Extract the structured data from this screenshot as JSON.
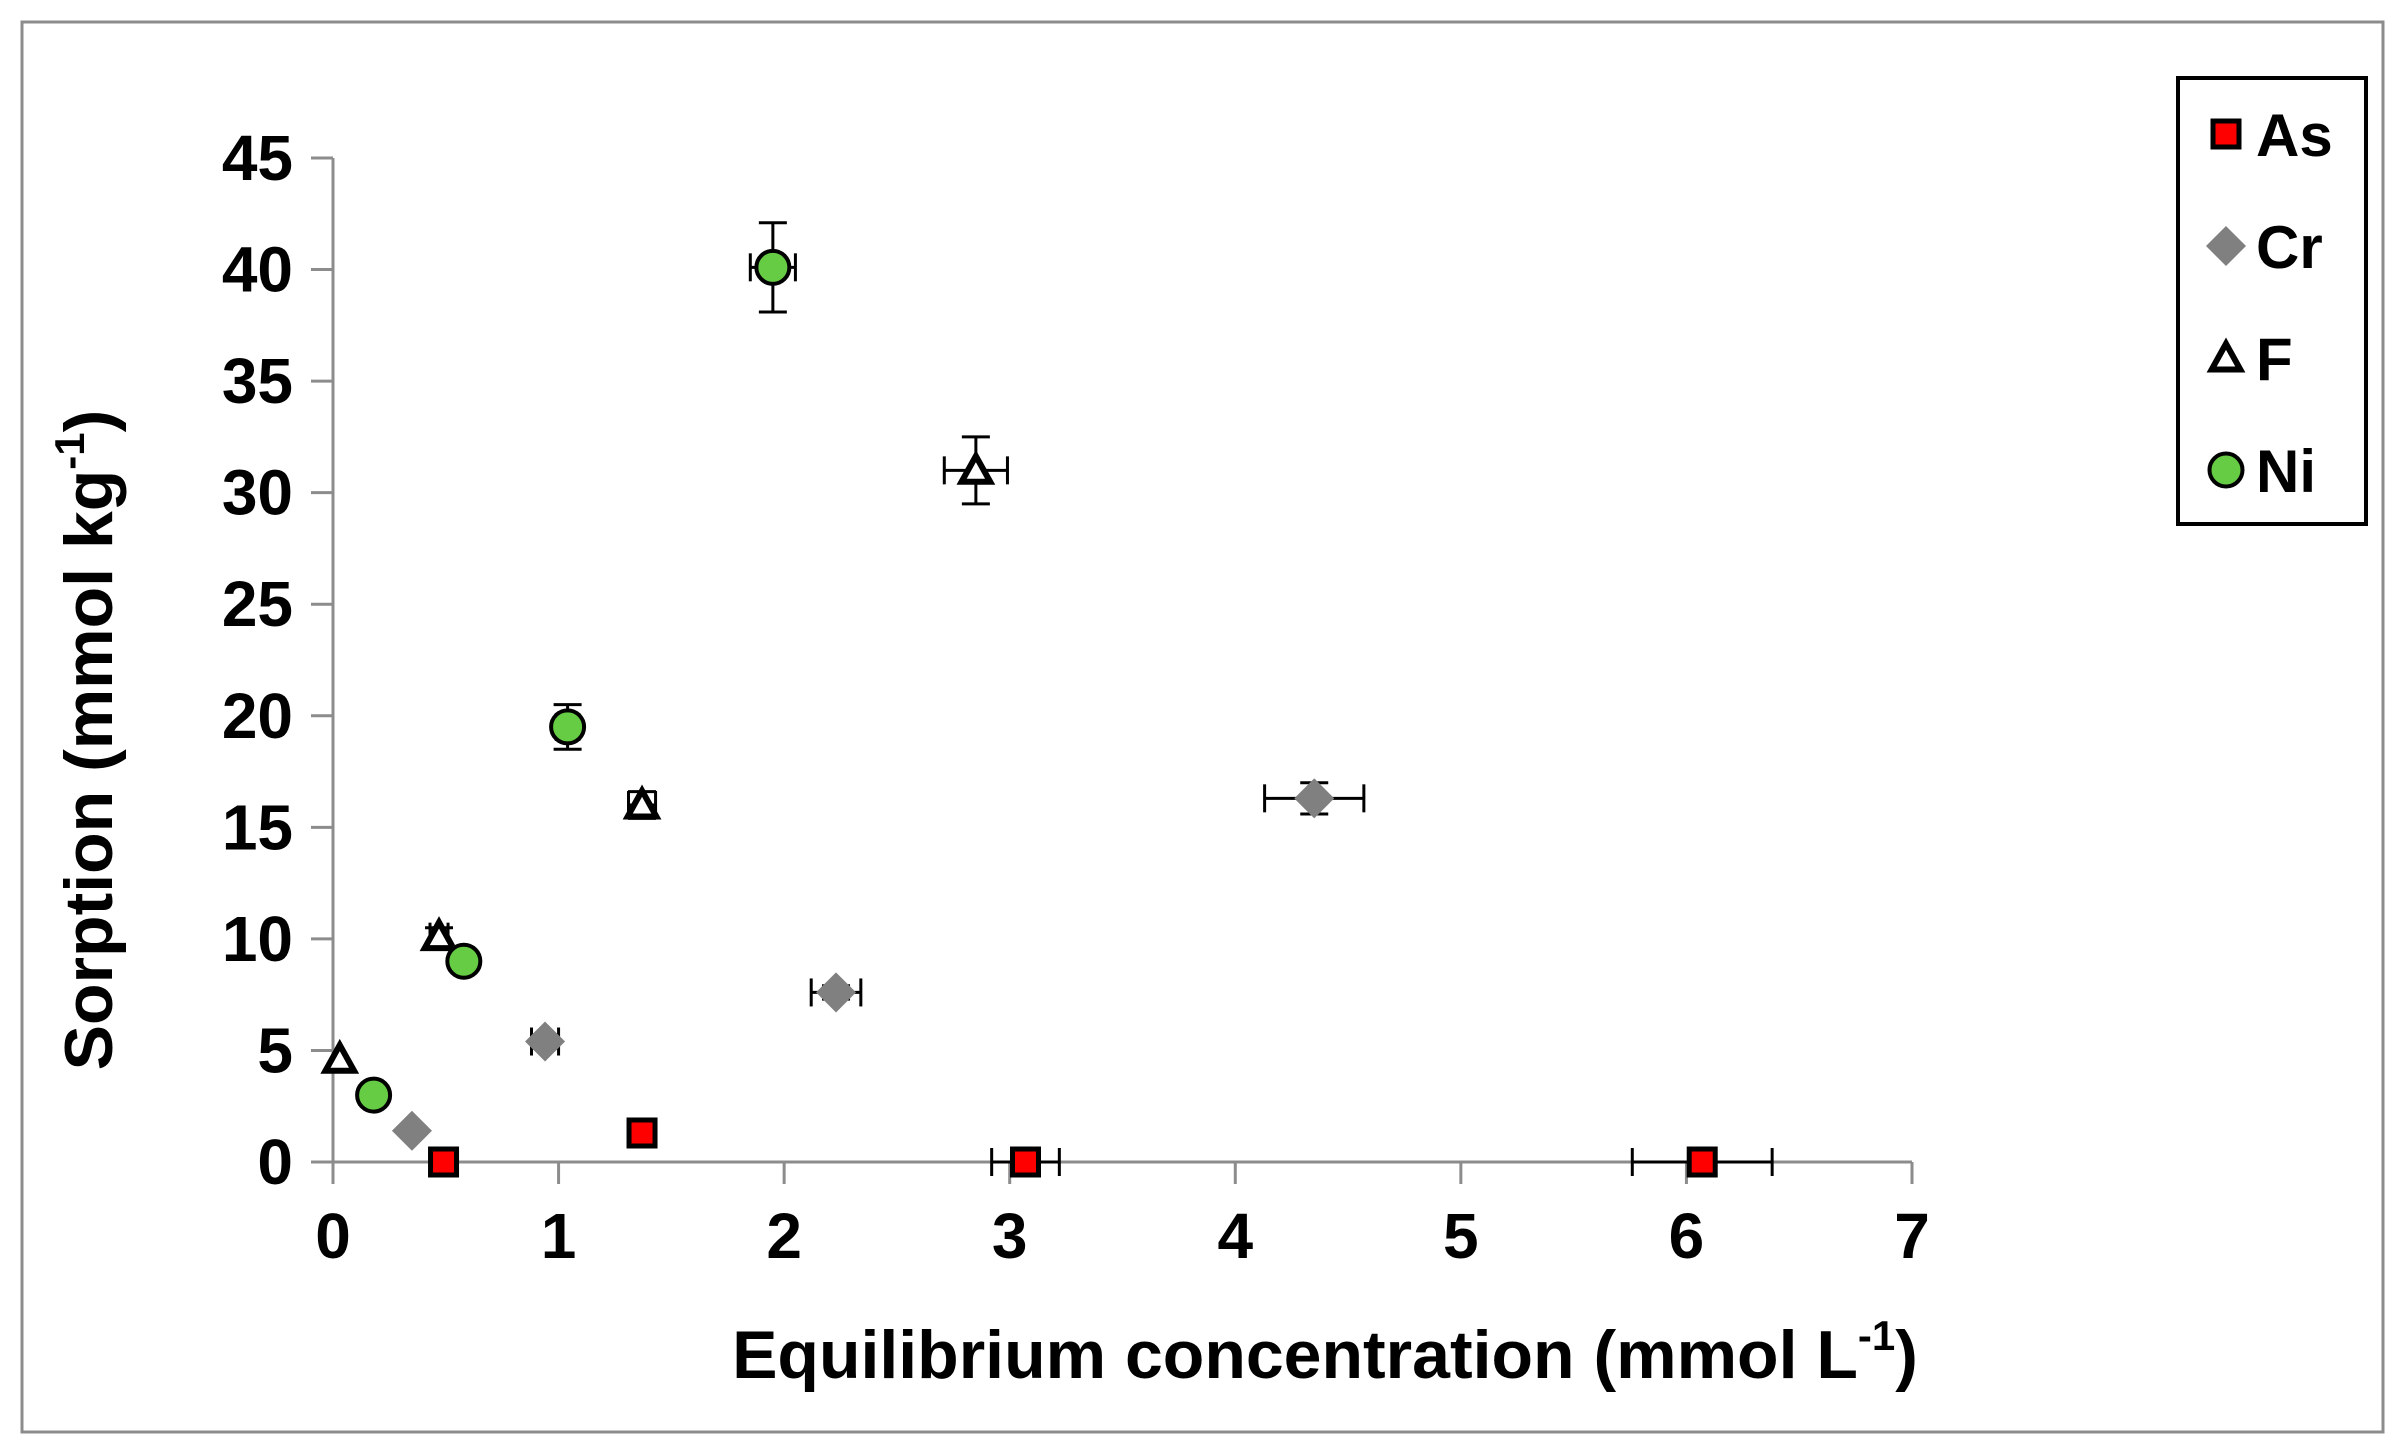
{
  "chart_data": {
    "type": "scatter",
    "xlabel": "Equilibrium concentration (mmol L",
    "xlabel_sup": "-1",
    "xlabel_end": ")",
    "ylabel": "Sorption (mmol kg",
    "ylabel_sup": "-1",
    "ylabel_end": ")",
    "xlim": [
      0,
      7
    ],
    "ylim": [
      0,
      45
    ],
    "x_ticks": [
      0,
      1,
      2,
      3,
      4,
      5,
      6,
      7
    ],
    "y_ticks": [
      0,
      5,
      10,
      15,
      20,
      25,
      30,
      35,
      40,
      45
    ],
    "grid": false,
    "legend_position": "top-right",
    "series": [
      {
        "name": "As",
        "marker": "square",
        "color": "#ff0000",
        "stroke": "#000000",
        "points": [
          {
            "x": 0.49,
            "y": 0.0,
            "xerr": 0.0,
            "yerr": 0.0
          },
          {
            "x": 1.37,
            "y": 1.3,
            "xerr": 0.05,
            "yerr": 0.3
          },
          {
            "x": 3.07,
            "y": 0.0,
            "xerr": 0.15,
            "yerr": 0.0
          },
          {
            "x": 6.07,
            "y": 0.0,
            "xerr": 0.31,
            "yerr": 0.0
          }
        ]
      },
      {
        "name": "Cr",
        "marker": "diamond",
        "color": "#808080",
        "stroke": "#808080",
        "points": [
          {
            "x": 0.35,
            "y": 1.4,
            "xerr": 0.0,
            "yerr": 0.0
          },
          {
            "x": 0.94,
            "y": 5.4,
            "xerr": 0.06,
            "yerr": 0.3
          },
          {
            "x": 2.23,
            "y": 7.6,
            "xerr": 0.11,
            "yerr": 0.3
          },
          {
            "x": 4.35,
            "y": 16.3,
            "xerr": 0.22,
            "yerr": 0.7
          }
        ]
      },
      {
        "name": "F",
        "marker": "triangle",
        "color": "#ffffff",
        "stroke": "#000000",
        "points": [
          {
            "x": 0.03,
            "y": 4.6,
            "xerr": 0.0,
            "yerr": 0.0
          },
          {
            "x": 0.47,
            "y": 10.1,
            "xerr": 0.04,
            "yerr": 0.4
          },
          {
            "x": 1.37,
            "y": 16.0,
            "xerr": 0.06,
            "yerr": 0.6
          },
          {
            "x": 2.85,
            "y": 31.0,
            "xerr": 0.14,
            "yerr": 1.5
          }
        ]
      },
      {
        "name": "Ni",
        "marker": "circle",
        "color": "#66cc44",
        "stroke": "#000000",
        "points": [
          {
            "x": 0.18,
            "y": 3.0,
            "xerr": 0.0,
            "yerr": 0.0
          },
          {
            "x": 0.58,
            "y": 9.0,
            "xerr": 0.0,
            "yerr": 0.0
          },
          {
            "x": 1.04,
            "y": 19.5,
            "xerr": 0.05,
            "yerr": 1.0
          },
          {
            "x": 1.95,
            "y": 40.1,
            "xerr": 0.1,
            "yerr": 2.0
          }
        ]
      }
    ]
  }
}
